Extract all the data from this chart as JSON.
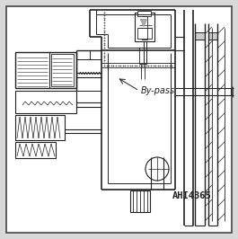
{
  "bg_color": "#d8d8d8",
  "line_color": "#222222",
  "bypass_label": "By-pass",
  "ref_label": "AHI4365",
  "fig_width": 2.65,
  "fig_height": 2.66,
  "dpi": 100
}
